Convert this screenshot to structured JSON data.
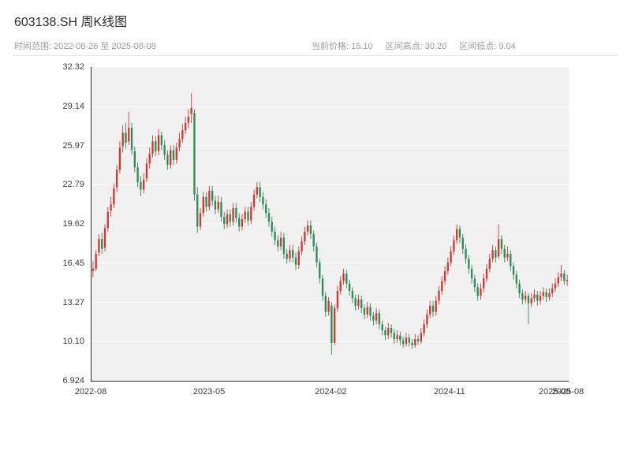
{
  "header": {
    "title": "603138.SH 周K线图",
    "time_range_label": "时间范围: 2022-08-26 至 2025-08-08",
    "current_price_label": "当前价格: 15.10",
    "range_high_label": "区间高点: 30.20",
    "range_low_label": "区间低点: 9.04"
  },
  "chart_data": {
    "type": "candlestick",
    "symbol": "603138.SH",
    "interval": "weekly",
    "title": "603138.SH 周K线图",
    "start_date": "2022-08-26",
    "end_date": "2025-08-08",
    "current_price": 15.1,
    "range_high": 30.2,
    "range_low": 9.04,
    "y_min": 6.924,
    "y_max": 32.32,
    "y_ticks": [
      "32.32",
      "29.14",
      "25.97",
      "22.79",
      "19.62",
      "16.45",
      "13.27",
      "10.10",
      "6.924"
    ],
    "x_ticks": [
      {
        "label": "2022-08",
        "pos": 0.0
      },
      {
        "label": "2023-05",
        "pos": 0.248
      },
      {
        "label": "2024-02",
        "pos": 0.503
      },
      {
        "label": "2024-11",
        "pos": 0.752
      },
      {
        "label": "2025-08",
        "pos": 0.972
      },
      {
        "label": "2025-08",
        "pos": 1.0
      }
    ],
    "up_color": "#cc3b33",
    "down_color": "#2e8b57",
    "plot_bg": "#f0f0f0",
    "grid": true,
    "legend": "none",
    "candles": [
      [
        15.8,
        16.6,
        15.3,
        16.0
      ],
      [
        16.0,
        17.5,
        15.8,
        17.2
      ],
      [
        17.3,
        18.8,
        17.0,
        18.4
      ],
      [
        18.4,
        18.9,
        17.2,
        17.6
      ],
      [
        17.7,
        19.6,
        17.4,
        19.3
      ],
      [
        19.3,
        21.0,
        19.0,
        20.6
      ],
      [
        20.7,
        21.8,
        20.2,
        21.2
      ],
      [
        21.2,
        22.9,
        20.9,
        22.5
      ],
      [
        22.6,
        24.4,
        22.2,
        24.0
      ],
      [
        24.0,
        26.3,
        23.7,
        25.8
      ],
      [
        25.9,
        27.6,
        25.4,
        27.0
      ],
      [
        27.0,
        27.8,
        25.7,
        26.2
      ],
      [
        26.3,
        28.7,
        26.0,
        27.4
      ],
      [
        27.4,
        27.8,
        25.2,
        25.6
      ],
      [
        25.5,
        25.9,
        23.8,
        24.2
      ],
      [
        24.2,
        24.6,
        22.6,
        23.0
      ],
      [
        23.0,
        23.5,
        21.9,
        22.4
      ],
      [
        22.4,
        23.7,
        22.1,
        23.2
      ],
      [
        23.3,
        24.9,
        23.0,
        24.5
      ],
      [
        24.5,
        25.8,
        24.1,
        25.3
      ],
      [
        25.3,
        26.8,
        25.0,
        26.3
      ],
      [
        26.3,
        26.7,
        25.1,
        25.5
      ],
      [
        25.5,
        27.3,
        25.2,
        26.8
      ],
      [
        26.8,
        27.1,
        25.6,
        26.0
      ],
      [
        26.0,
        26.4,
        24.8,
        25.2
      ],
      [
        25.2,
        25.6,
        24.0,
        24.4
      ],
      [
        24.4,
        26.0,
        24.1,
        25.6
      ],
      [
        25.6,
        26.0,
        24.4,
        24.8
      ],
      [
        24.8,
        26.2,
        24.5,
        25.8
      ],
      [
        25.8,
        27.0,
        25.5,
        26.5
      ],
      [
        26.5,
        27.7,
        26.2,
        27.2
      ],
      [
        27.2,
        28.3,
        26.9,
        27.8
      ],
      [
        27.8,
        28.9,
        27.4,
        28.3
      ],
      [
        28.5,
        30.2,
        27.8,
        29.0
      ],
      [
        28.6,
        28.9,
        21.5,
        22.0
      ],
      [
        22.0,
        22.6,
        18.9,
        19.4
      ],
      [
        19.4,
        20.9,
        19.1,
        20.5
      ],
      [
        20.5,
        22.2,
        20.2,
        21.8
      ],
      [
        21.8,
        22.2,
        20.6,
        21.0
      ],
      [
        21.0,
        22.7,
        20.7,
        22.3
      ],
      [
        22.3,
        22.7,
        21.1,
        21.5
      ],
      [
        21.5,
        21.9,
        20.4,
        20.8
      ],
      [
        20.8,
        21.9,
        20.5,
        21.4
      ],
      [
        21.4,
        21.8,
        19.8,
        20.2
      ],
      [
        20.2,
        20.6,
        19.2,
        19.6
      ],
      [
        19.6,
        20.8,
        19.3,
        20.4
      ],
      [
        20.4,
        20.8,
        19.4,
        19.8
      ],
      [
        19.8,
        21.3,
        19.5,
        20.9
      ],
      [
        20.9,
        21.3,
        19.7,
        20.1
      ],
      [
        20.1,
        20.5,
        19.0,
        19.4
      ],
      [
        19.4,
        20.4,
        19.1,
        20.0
      ],
      [
        20.0,
        21.0,
        19.7,
        20.6
      ],
      [
        20.6,
        21.0,
        19.5,
        19.9
      ],
      [
        19.9,
        21.4,
        19.6,
        21.0
      ],
      [
        21.0,
        22.4,
        20.7,
        22.0
      ],
      [
        22.0,
        23.0,
        21.7,
        22.6
      ],
      [
        22.6,
        23.0,
        21.4,
        21.8
      ],
      [
        21.8,
        22.2,
        20.8,
        21.2
      ],
      [
        21.2,
        21.6,
        20.1,
        20.5
      ],
      [
        20.5,
        20.9,
        19.4,
        19.8
      ],
      [
        19.8,
        20.2,
        18.6,
        19.0
      ],
      [
        19.0,
        19.4,
        17.9,
        18.3
      ],
      [
        18.3,
        18.7,
        17.4,
        17.8
      ],
      [
        17.8,
        19.0,
        17.5,
        18.5
      ],
      [
        18.5,
        18.9,
        16.8,
        17.2
      ],
      [
        17.2,
        17.6,
        16.4,
        16.8
      ],
      [
        16.8,
        17.9,
        16.5,
        17.5
      ],
      [
        17.5,
        17.9,
        16.5,
        16.9
      ],
      [
        16.9,
        17.3,
        15.9,
        16.3
      ],
      [
        16.3,
        17.8,
        16.0,
        17.4
      ],
      [
        17.4,
        18.6,
        17.1,
        18.2
      ],
      [
        18.2,
        19.4,
        17.9,
        19.0
      ],
      [
        19.0,
        19.9,
        18.7,
        19.5
      ],
      [
        19.5,
        19.9,
        18.4,
        18.8
      ],
      [
        18.8,
        19.1,
        17.4,
        17.8
      ],
      [
        17.8,
        18.1,
        16.1,
        16.5
      ],
      [
        16.5,
        16.8,
        14.8,
        15.2
      ],
      [
        15.2,
        15.5,
        13.4,
        13.8
      ],
      [
        13.8,
        14.1,
        12.1,
        12.5
      ],
      [
        12.5,
        13.7,
        12.2,
        13.4
      ],
      [
        13.0,
        13.3,
        9.04,
        10.0
      ],
      [
        10.0,
        13.1,
        9.8,
        12.8
      ],
      [
        12.8,
        14.6,
        12.5,
        14.2
      ],
      [
        14.2,
        15.4,
        13.9,
        15.0
      ],
      [
        15.0,
        16.0,
        14.7,
        15.6
      ],
      [
        15.6,
        15.9,
        14.4,
        14.8
      ],
      [
        14.8,
        15.1,
        13.8,
        14.2
      ],
      [
        14.2,
        14.5,
        13.2,
        13.6
      ],
      [
        13.6,
        13.9,
        12.6,
        13.0
      ],
      [
        13.0,
        13.9,
        12.7,
        13.5
      ],
      [
        13.5,
        13.8,
        12.4,
        12.8
      ],
      [
        12.8,
        13.1,
        11.9,
        12.3
      ],
      [
        12.3,
        13.3,
        12.0,
        12.9
      ],
      [
        12.9,
        13.2,
        11.8,
        12.2
      ],
      [
        12.2,
        12.5,
        11.4,
        11.8
      ],
      [
        11.8,
        12.8,
        11.5,
        12.4
      ],
      [
        12.4,
        12.7,
        11.1,
        11.5
      ],
      [
        11.5,
        11.8,
        10.6,
        11.0
      ],
      [
        11.0,
        11.3,
        10.2,
        10.6
      ],
      [
        10.6,
        11.6,
        10.3,
        11.2
      ],
      [
        11.2,
        11.5,
        10.4,
        10.8
      ],
      [
        10.8,
        11.1,
        9.9,
        10.3
      ],
      [
        10.3,
        11.0,
        10.0,
        10.6
      ],
      [
        10.6,
        10.9,
        9.8,
        10.2
      ],
      [
        10.2,
        10.5,
        9.6,
        9.9
      ],
      [
        9.9,
        10.8,
        9.7,
        10.4
      ],
      [
        10.4,
        10.7,
        9.7,
        10.0
      ],
      [
        10.0,
        10.3,
        9.5,
        9.8
      ],
      [
        9.8,
        10.7,
        9.6,
        10.3
      ],
      [
        10.3,
        10.6,
        9.8,
        10.1
      ],
      [
        10.1,
        11.2,
        9.9,
        10.8
      ],
      [
        10.8,
        11.9,
        10.5,
        11.5
      ],
      [
        11.5,
        12.7,
        11.2,
        12.3
      ],
      [
        12.3,
        13.4,
        12.0,
        13.0
      ],
      [
        13.0,
        13.4,
        12.1,
        12.5
      ],
      [
        12.5,
        13.8,
        12.2,
        13.4
      ],
      [
        13.4,
        14.6,
        13.1,
        14.2
      ],
      [
        14.2,
        15.4,
        13.9,
        15.0
      ],
      [
        15.0,
        16.2,
        14.7,
        15.8
      ],
      [
        15.8,
        16.9,
        15.5,
        16.5
      ],
      [
        16.5,
        17.8,
        16.2,
        17.4
      ],
      [
        17.4,
        18.7,
        17.1,
        18.3
      ],
      [
        18.3,
        19.6,
        18.0,
        19.2
      ],
      [
        19.2,
        19.5,
        18.1,
        18.5
      ],
      [
        18.5,
        18.8,
        17.2,
        17.6
      ],
      [
        17.6,
        17.9,
        16.4,
        16.8
      ],
      [
        16.8,
        17.1,
        15.6,
        16.0
      ],
      [
        16.0,
        16.3,
        14.8,
        15.2
      ],
      [
        15.2,
        15.5,
        14.1,
        14.5
      ],
      [
        14.5,
        14.8,
        13.4,
        13.8
      ],
      [
        13.8,
        14.8,
        13.5,
        14.4
      ],
      [
        14.4,
        15.6,
        14.1,
        15.2
      ],
      [
        15.2,
        16.4,
        14.9,
        16.0
      ],
      [
        16.0,
        17.2,
        15.7,
        16.8
      ],
      [
        16.8,
        17.9,
        16.5,
        17.5
      ],
      [
        17.5,
        17.8,
        16.5,
        16.9
      ],
      [
        17.0,
        19.6,
        16.8,
        18.4
      ],
      [
        18.4,
        18.7,
        17.2,
        17.6
      ],
      [
        17.6,
        17.9,
        16.5,
        16.9
      ],
      [
        16.9,
        17.8,
        16.6,
        17.2
      ],
      [
        17.2,
        17.5,
        15.8,
        16.2
      ],
      [
        16.2,
        16.5,
        15.1,
        15.5
      ],
      [
        15.5,
        15.8,
        14.4,
        14.8
      ],
      [
        14.8,
        15.1,
        13.6,
        14.0
      ],
      [
        14.0,
        14.3,
        13.1,
        13.5
      ],
      [
        13.5,
        14.2,
        13.2,
        13.8
      ],
      [
        13.8,
        14.0,
        11.5,
        13.2
      ],
      [
        13.2,
        14.0,
        12.9,
        13.6
      ],
      [
        13.6,
        14.3,
        13.3,
        13.9
      ],
      [
        13.9,
        14.2,
        13.0,
        13.4
      ],
      [
        13.4,
        14.2,
        13.1,
        13.8
      ],
      [
        13.8,
        14.5,
        13.5,
        14.1
      ],
      [
        14.1,
        14.4,
        13.3,
        13.7
      ],
      [
        13.7,
        14.4,
        13.4,
        14.0
      ],
      [
        14.0,
        14.8,
        13.7,
        14.4
      ],
      [
        14.4,
        15.2,
        14.1,
        14.8
      ],
      [
        14.8,
        15.7,
        14.5,
        15.3
      ],
      [
        15.3,
        16.3,
        15.0,
        15.6
      ],
      [
        15.6,
        15.9,
        14.7,
        15.0
      ],
      [
        15.0,
        15.5,
        14.6,
        15.1
      ]
    ]
  }
}
